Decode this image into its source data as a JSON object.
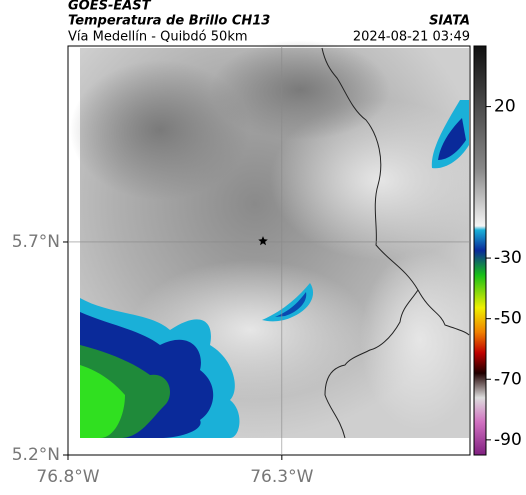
{
  "chart_data": {
    "type": "map",
    "satellite": "GOES-EAST",
    "title": "Temperatura de Brillo CH13",
    "subtitle": "Vía Medellín - Quibdó 50km",
    "source": "SIATA",
    "timestamp": "2024-08-21 03:49",
    "xlim": [
      -76.8,
      -75.86
    ],
    "ylim": [
      5.2,
      6.16
    ],
    "xticks": [
      {
        "value": -76.8,
        "label": "76.8°W"
      },
      {
        "value": -76.3,
        "label": "76.3°W"
      }
    ],
    "yticks": [
      {
        "value": 5.2,
        "label": "5.2°N"
      },
      {
        "value": 5.7,
        "label": "5.7°N"
      }
    ],
    "grid": true,
    "marker": {
      "lon": -76.344,
      "lat": 5.702
    },
    "clim": [
      -95,
      40
    ],
    "cticks": [
      20,
      -30,
      -50,
      -70,
      -90
    ]
  }
}
